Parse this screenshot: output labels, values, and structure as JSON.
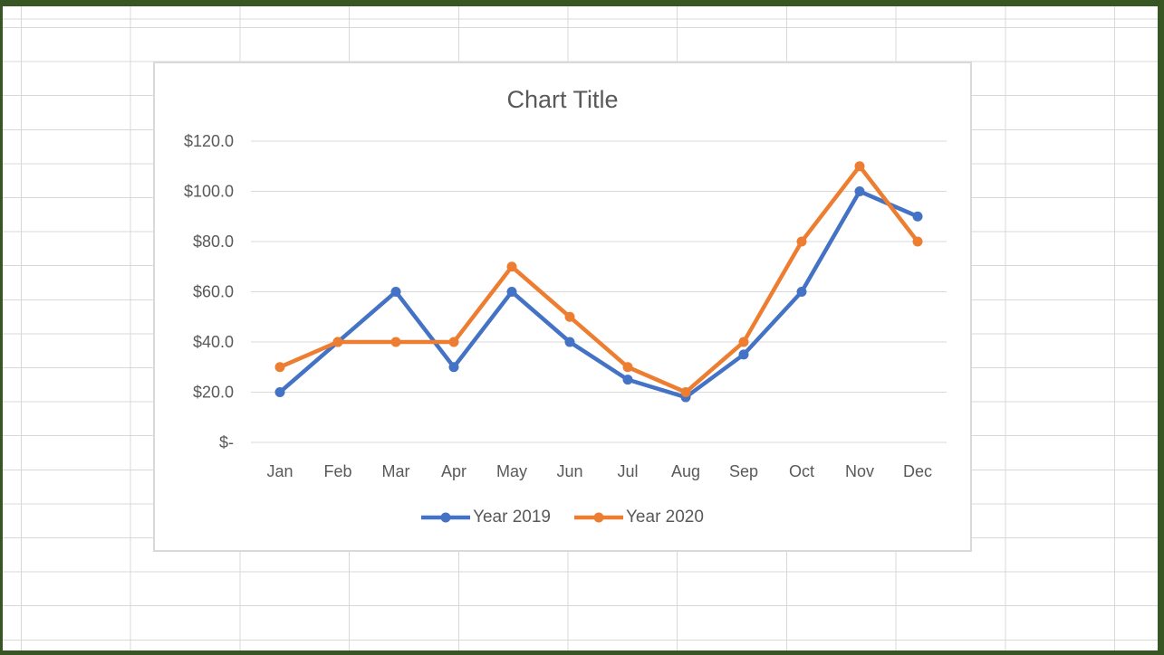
{
  "colors": {
    "frame_green": "#375623",
    "sheet_grid": "#d8d8d8",
    "chart_border": "#d9d9d9",
    "axis_text": "#595959",
    "title_text": "#595959",
    "background": "#ffffff"
  },
  "chart_data": {
    "type": "line",
    "title": "Chart Title",
    "categories": [
      "Jan",
      "Feb",
      "Mar",
      "Apr",
      "May",
      "Jun",
      "Jul",
      "Aug",
      "Sep",
      "Oct",
      "Nov",
      "Dec"
    ],
    "series": [
      {
        "name": "Year 2019",
        "color": "#4472C4",
        "values": [
          20,
          40,
          60,
          30,
          60,
          40,
          25,
          18,
          35,
          60,
          100,
          90
        ]
      },
      {
        "name": "Year 2020",
        "color": "#ED7D31",
        "values": [
          30,
          40,
          40,
          40,
          70,
          50,
          30,
          20,
          40,
          80,
          110,
          80
        ]
      }
    ],
    "y_ticks": [
      "$120.0",
      "$100.0",
      "$80.0",
      "$60.0",
      "$40.0",
      "$20.0",
      "$-"
    ],
    "y_tick_values": [
      120,
      100,
      80,
      60,
      40,
      20,
      0
    ],
    "ylim": [
      0,
      120
    ],
    "xlabel": "",
    "ylabel": "",
    "grid": true,
    "gridline_color": "#d9d9d9",
    "legend_position": "bottom",
    "marker": "circle"
  }
}
